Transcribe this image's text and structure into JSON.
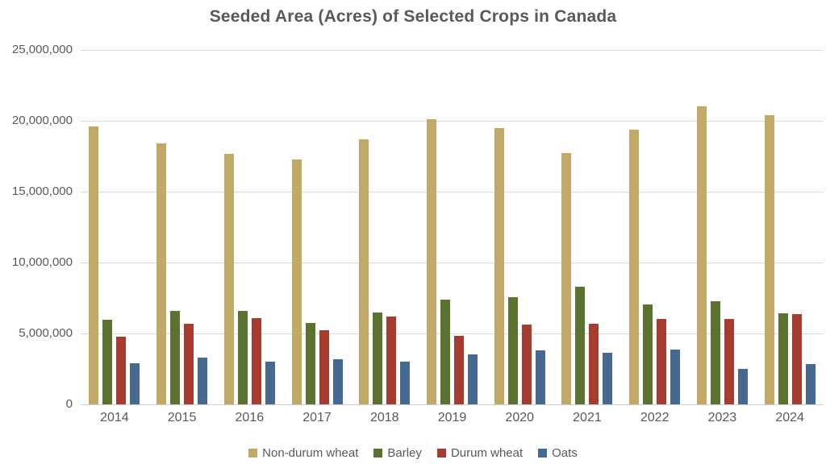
{
  "title": "Seeded Area (Acres) of Selected Crops in Canada",
  "colors": {
    "non_durum_wheat": "#C3A968",
    "barley": "#5B7231",
    "durum_wheat": "#A63B2F",
    "oats": "#46698F",
    "gridline": "#D9D9D9",
    "text": "#595959"
  },
  "chart_data": {
    "type": "bar",
    "title": "Seeded Area (Acres) of Selected Crops in Canada",
    "xlabel": "",
    "ylabel": "",
    "categories": [
      "2014",
      "2015",
      "2016",
      "2017",
      "2018",
      "2019",
      "2020",
      "2021",
      "2022",
      "2023",
      "2024"
    ],
    "series": [
      {
        "name": "Non-durum wheat",
        "color": "#C3A968",
        "values": [
          19600000,
          18400000,
          17650000,
          17300000,
          18700000,
          20100000,
          19500000,
          17700000,
          19400000,
          21000000,
          20400000
        ]
      },
      {
        "name": "Barley",
        "color": "#5B7231",
        "values": [
          5950000,
          6600000,
          6600000,
          5750000,
          6450000,
          7400000,
          7550000,
          8300000,
          7050000,
          7300000,
          6400000
        ]
      },
      {
        "name": "Durum wheat",
        "color": "#A63B2F",
        "values": [
          4750000,
          5700000,
          6100000,
          5200000,
          6200000,
          4850000,
          5650000,
          5700000,
          6000000,
          6000000,
          6350000
        ]
      },
      {
        "name": "Oats",
        "color": "#46698F",
        "values": [
          2900000,
          3300000,
          3000000,
          3200000,
          3000000,
          3550000,
          3800000,
          3650000,
          3850000,
          2500000,
          2850000
        ]
      }
    ],
    "ylim": [
      0,
      25000000
    ],
    "y_tick_interval": 5000000,
    "y_tick_labels": [
      "0",
      "5,000,000",
      "10,000,000",
      "15,000,000",
      "20,000,000",
      "25,000,000"
    ],
    "grid": true,
    "legend_position": "bottom"
  }
}
